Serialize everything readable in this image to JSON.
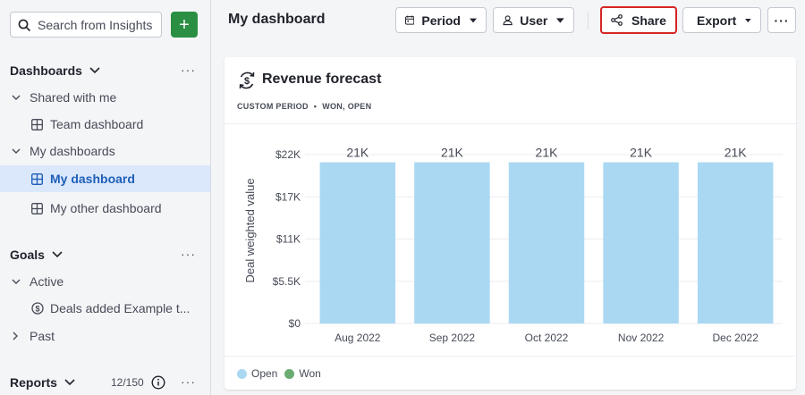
{
  "sidebar": {
    "search_placeholder": "Search from Insights",
    "add_label": "+",
    "sections": {
      "dashboards": {
        "title": "Dashboards",
        "more": "···"
      },
      "goals": {
        "title": "Goals",
        "more": "···"
      },
      "reports": {
        "title": "Reports",
        "count": "12/150",
        "more": "···"
      }
    },
    "tree": {
      "shared_with_me": "Shared with me",
      "team_dashboard": "Team dashboard",
      "my_dashboards": "My dashboards",
      "my_dashboard": "My dashboard",
      "my_other_dashboard": "My other dashboard",
      "active": "Active",
      "deals_goal": "Deals added Example t...",
      "past": "Past"
    }
  },
  "header": {
    "title": "My dashboard",
    "period_label": "Period",
    "user_label": "User",
    "share_label": "Share",
    "export_label": "Export",
    "more_label": "···"
  },
  "card": {
    "title": "Revenue forecast",
    "subtitle_period": "CUSTOM PERIOD",
    "subtitle_sep": "•",
    "subtitle_status": "WON, OPEN"
  },
  "chart_data": {
    "type": "bar",
    "categories": [
      "Aug 2022",
      "Sep 2022",
      "Oct 2022",
      "Nov 2022",
      "Dec 2022"
    ],
    "series": [
      {
        "name": "Open",
        "values": [
          21000,
          21000,
          21000,
          21000,
          21000
        ],
        "color": "#aad8f3"
      },
      {
        "name": "Won",
        "values": [
          0,
          0,
          0,
          0,
          0
        ],
        "color": "#6aac72"
      }
    ],
    "data_labels": [
      "21K",
      "21K",
      "21K",
      "21K",
      "21K"
    ],
    "y_ticks": [
      {
        "value": 0,
        "label": "$0"
      },
      {
        "value": 5500,
        "label": "$5.5K"
      },
      {
        "value": 11000,
        "label": "$11K"
      },
      {
        "value": 16500,
        "label": "$17K"
      },
      {
        "value": 22000,
        "label": "$22K"
      }
    ],
    "ylabel": "Deal weighted value",
    "xlabel": "",
    "ylim": [
      0,
      22000
    ],
    "grid": true,
    "legend_position": "bottom-left"
  },
  "colors": {
    "accent_green": "#2a8f43",
    "selected_bg": "#dbe8fb",
    "selected_text": "#1f5fb8",
    "highlight_red": "#d72523"
  }
}
